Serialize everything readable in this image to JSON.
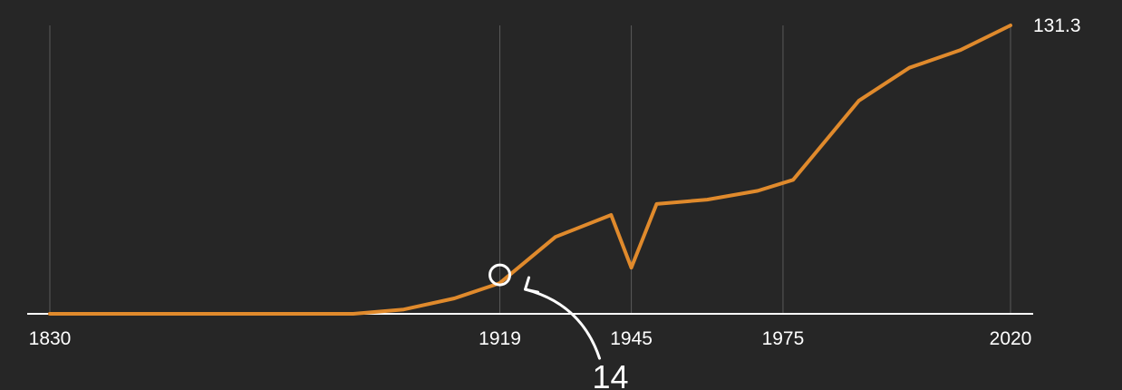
{
  "chart_data": {
    "type": "line",
    "title": "",
    "xlabel": "",
    "ylabel": "",
    "xlim": [
      1830,
      2020
    ],
    "ylim": [
      0,
      131.3
    ],
    "grid": "vertical",
    "x_ticks": [
      1830,
      1919,
      1945,
      1975,
      2020
    ],
    "series": [
      {
        "color": "#e08a2c",
        "x": [
          1830,
          1890,
          1900,
          1910,
          1919,
          1930,
          1941,
          1945,
          1950,
          1960,
          1970,
          1977,
          1990,
          2000,
          2010,
          2020
        ],
        "y": [
          0,
          0,
          2,
          7,
          14,
          35,
          45,
          21,
          50,
          52,
          56,
          61,
          97,
          112,
          120,
          131.3
        ]
      }
    ],
    "end_label": "131.3",
    "annotation": {
      "x": 1919,
      "y": 14,
      "label": "14"
    }
  }
}
